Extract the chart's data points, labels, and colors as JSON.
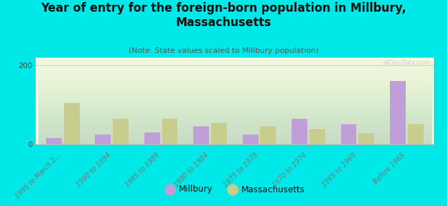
{
  "title": "Year of entry for the foreign-born population in Millbury,\nMassachusetts",
  "subtitle": "(Note: State values scaled to Millbury population)",
  "categories": [
    "1995 to March 2...",
    "1990 to 1994",
    "1985 to 1989",
    "1980 to 1984",
    "1975 to 1979",
    "1970 to 1974",
    "1965 to 1969",
    "Before 1965"
  ],
  "millbury_values": [
    15,
    25,
    30,
    45,
    25,
    65,
    50,
    160
  ],
  "massachusetts_values": [
    105,
    65,
    65,
    55,
    45,
    38,
    28,
    50
  ],
  "millbury_color": "#c09ed8",
  "massachusetts_color": "#c8cc8c",
  "background_color": "#00e8e8",
  "ylim": [
    0,
    220
  ],
  "yticks": [
    0,
    200
  ],
  "title_fontsize": 12,
  "subtitle_fontsize": 8,
  "watermark": "@City-Data.com"
}
